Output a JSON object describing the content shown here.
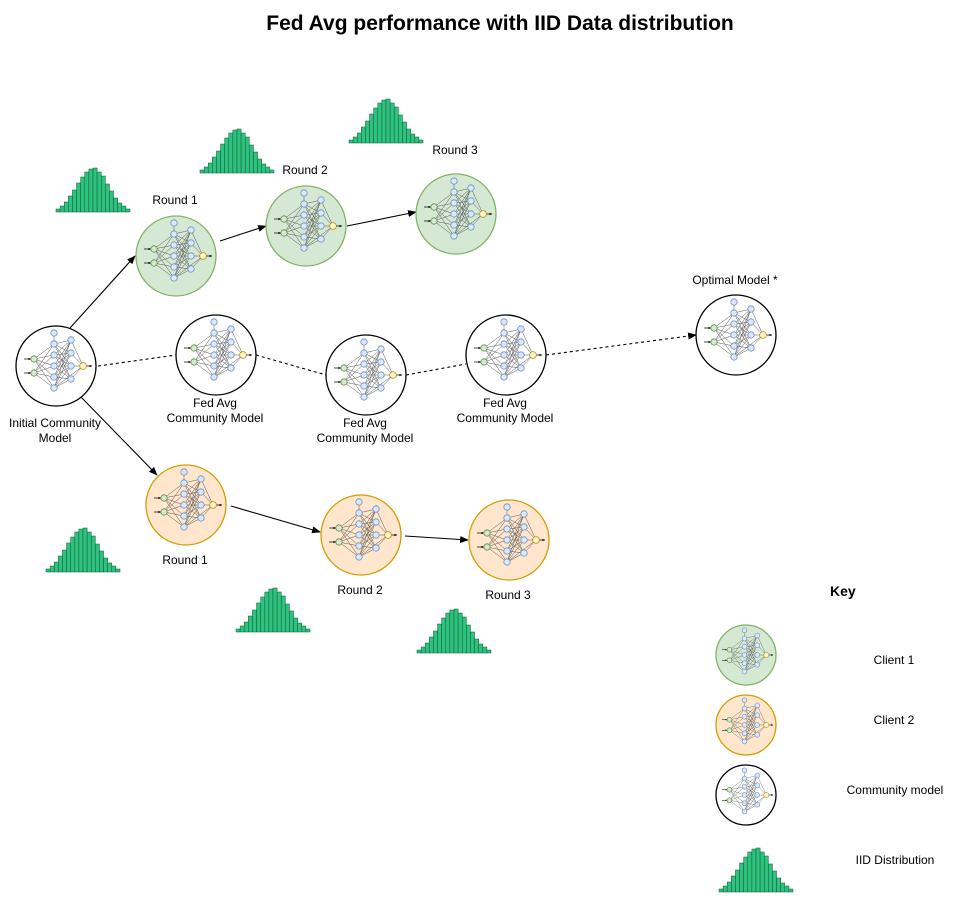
{
  "title": "Fed Avg performance with IID Data distribution",
  "labels": {
    "client1_round1": "Round 1",
    "client1_round2": "Round 2",
    "client1_round3": "Round 3",
    "client2_round1": "Round 1",
    "client2_round2": "Round 2",
    "client2_round3": "Round 3",
    "initial_line1": "Initial Community",
    "initial_line2": "Model",
    "fedavg1_line1": "Fed Avg",
    "fedavg1_line2": "Community Model",
    "fedavg2_line1": "Fed Avg",
    "fedavg2_line2": "Community Model",
    "fedavg3_line1": "Fed Avg",
    "fedavg3_line2": "Community Model",
    "optimal": "Optimal Model *"
  },
  "key": {
    "title": "Key",
    "client1": "Client 1",
    "client2": "Client 2",
    "community": "Community model",
    "iid": "IID Distribution"
  },
  "colors": {
    "client1_fill": "#d5e8d4",
    "client1_stroke": "#82b366",
    "client2_fill": "#ffe6cc",
    "client2_stroke": "#d79b00",
    "community_fill": "#ffffff",
    "community_stroke": "#000000",
    "histogram": "#2ec27e",
    "node_input": "#d5e8d4",
    "node_hidden": "#dae8fc",
    "node_output": "#fff2cc"
  }
}
